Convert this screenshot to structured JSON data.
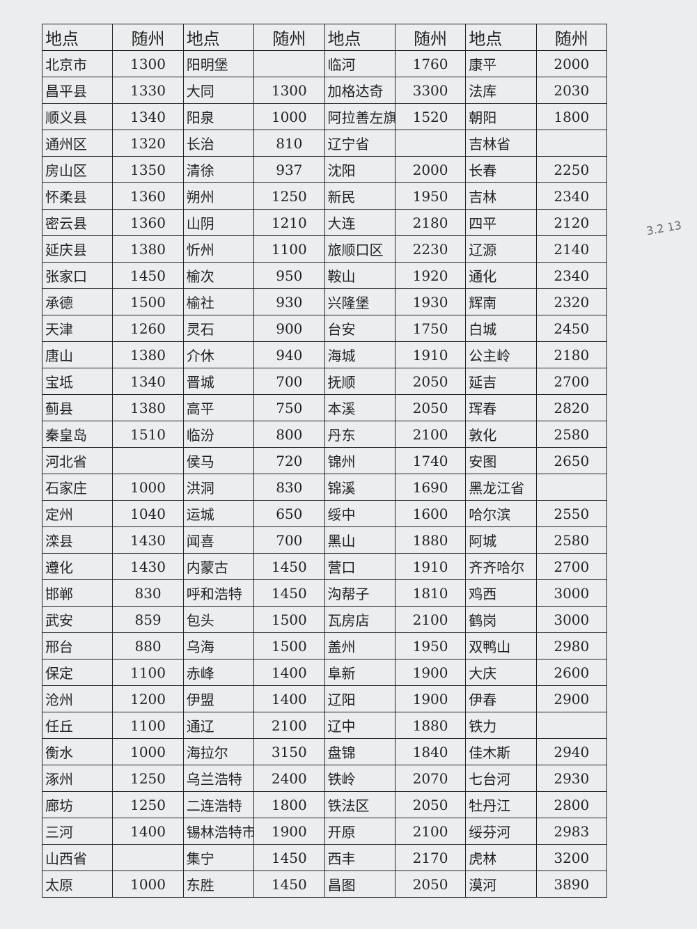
{
  "table": {
    "header": [
      "地点",
      "随州",
      "地点",
      "随州",
      "地点",
      "随州",
      "地点",
      "随州"
    ],
    "rows": [
      [
        "北京市",
        1300,
        "阳明堡",
        null,
        "临河",
        1760,
        "康平",
        2000
      ],
      [
        "昌平县",
        1330,
        "大同",
        1300,
        "加格达奇",
        3300,
        "法库",
        2030
      ],
      [
        "顺义县",
        1340,
        "阳泉",
        1000,
        "阿拉善左旗",
        1520,
        "朝阳",
        1800
      ],
      [
        "通州区",
        1320,
        "长治",
        810,
        "辽宁省",
        null,
        "吉林省",
        null
      ],
      [
        "房山区",
        1350,
        "清徐",
        937,
        "沈阳",
        2000,
        "长春",
        2250
      ],
      [
        "怀柔县",
        1360,
        "朔州",
        1250,
        "新民",
        1950,
        "吉林",
        2340
      ],
      [
        "密云县",
        1360,
        "山阴",
        1210,
        "大连",
        2180,
        "四平",
        2120
      ],
      [
        "延庆县",
        1380,
        "忻州",
        1100,
        "旅顺口区",
        2230,
        "辽源",
        2140
      ],
      [
        "张家口",
        1450,
        "榆次",
        950,
        "鞍山",
        1920,
        "通化",
        2340
      ],
      [
        "承德",
        1500,
        "榆社",
        930,
        "兴隆堡",
        1930,
        "辉南",
        2320
      ],
      [
        "天津",
        1260,
        "灵石",
        900,
        "台安",
        1750,
        "白城",
        2450
      ],
      [
        "唐山",
        1380,
        "介休",
        940,
        "海城",
        1910,
        "公主岭",
        2180
      ],
      [
        "宝坻",
        1340,
        "晋城",
        700,
        "抚顺",
        2050,
        "延吉",
        2700
      ],
      [
        "蓟县",
        1380,
        "高平",
        750,
        "本溪",
        2050,
        "珲春",
        2820
      ],
      [
        "秦皇岛",
        1510,
        "临汾",
        800,
        "丹东",
        2100,
        "敦化",
        2580
      ],
      [
        "河北省",
        null,
        "侯马",
        720,
        "锦州",
        1740,
        "安图",
        2650
      ],
      [
        "石家庄",
        1000,
        "洪洞",
        830,
        "锦溪",
        1690,
        "黑龙江省",
        null
      ],
      [
        "定州",
        1040,
        "运城",
        650,
        "绥中",
        1600,
        "哈尔滨",
        2550
      ],
      [
        "滦县",
        1430,
        "闻喜",
        700,
        "黑山",
        1880,
        "阿城",
        2580
      ],
      [
        "遵化",
        1430,
        "内蒙古",
        1450,
        "营口",
        1910,
        "齐齐哈尔",
        2700
      ],
      [
        "邯郸",
        830,
        "呼和浩特",
        1450,
        "沟帮子",
        1810,
        "鸡西",
        3000
      ],
      [
        "武安",
        859,
        "包头",
        1500,
        "瓦房店",
        2100,
        "鹤岗",
        3000
      ],
      [
        "邢台",
        880,
        "乌海",
        1500,
        "盖州",
        1950,
        "双鸭山",
        2980
      ],
      [
        "保定",
        1100,
        "赤峰",
        1400,
        "阜新",
        1900,
        "大庆",
        2600
      ],
      [
        "沧州",
        1200,
        "伊盟",
        1400,
        "辽阳",
        1900,
        "伊春",
        2900
      ],
      [
        "任丘",
        1100,
        "通辽",
        2100,
        "辽中",
        1880,
        "铁力",
        null
      ],
      [
        "衡水",
        1000,
        "海拉尔",
        3150,
        "盘锦",
        1840,
        "佳木斯",
        2940
      ],
      [
        "涿州",
        1250,
        "乌兰浩特",
        2400,
        "铁岭",
        2070,
        "七台河",
        2930
      ],
      [
        "廊坊",
        1250,
        "二连浩特",
        1800,
        "铁法区",
        2050,
        "牡丹江",
        2800
      ],
      [
        "三河",
        1400,
        "锡林浩特市",
        1900,
        "开原",
        2100,
        "绥芬河",
        2983
      ],
      [
        "山西省",
        null,
        "集宁",
        1450,
        "西丰",
        2170,
        "虎林",
        3200
      ],
      [
        "太原",
        1000,
        "东胜",
        1450,
        "昌图",
        2050,
        "漠河",
        3890
      ]
    ]
  },
  "margin_note": "3.2 13"
}
